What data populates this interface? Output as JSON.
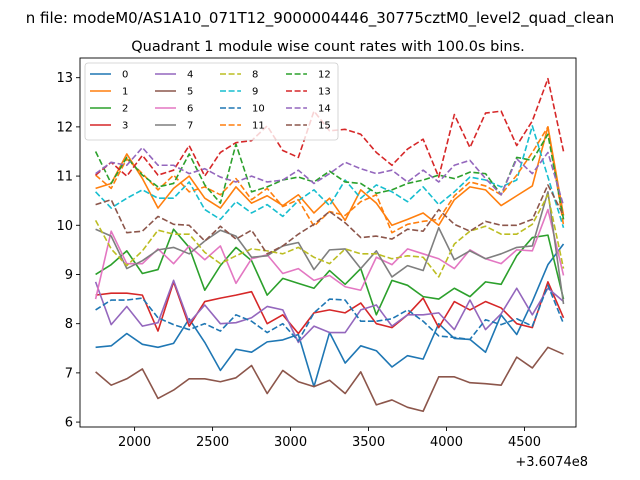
{
  "suptitle": "n file: modeM0/AS1A10_071T12_9000004446_30775cztM0_level2_quad_clean",
  "chart_data": {
    "type": "line",
    "title": "Quadrant 1 module wise count rates with 100.0s bins.",
    "xlabel": "",
    "ylabel": "",
    "x_offset_label": "+3.6074e8",
    "xlim": [
      1650,
      4830
    ],
    "ylim": [
      5.9,
      13.4
    ],
    "x_ticks": [
      2000,
      2500,
      3000,
      3500,
      4000,
      4500
    ],
    "x_tick_labels": [
      "2000",
      "2500",
      "3000",
      "3500",
      "4000",
      "4500"
    ],
    "y_ticks": [
      6,
      7,
      8,
      9,
      10,
      11,
      12,
      13
    ],
    "y_tick_labels": [
      "6",
      "7",
      "8",
      "9",
      "10",
      "11",
      "12",
      "13"
    ],
    "grid": false,
    "legend_position": "upper-left",
    "x": [
      1750,
      1850,
      1950,
      2050,
      2150,
      2250,
      2350,
      2450,
      2550,
      2650,
      2750,
      2850,
      2950,
      3050,
      3150,
      3250,
      3350,
      3450,
      3550,
      3650,
      3750,
      3850,
      3950,
      4050,
      4150,
      4250,
      4350,
      4450,
      4550,
      4650,
      4750
    ],
    "series": [
      {
        "name": "0",
        "color": "#1f77b4",
        "dash": "solid",
        "values": [
          7.52,
          7.55,
          7.8,
          7.58,
          7.52,
          7.6,
          8.1,
          7.62,
          7.05,
          7.48,
          7.42,
          7.63,
          7.67,
          7.78,
          6.72,
          7.82,
          7.2,
          7.55,
          7.45,
          7.12,
          7.35,
          7.28,
          8.0,
          7.7,
          7.68,
          7.42,
          8.18,
          7.78,
          8.45,
          9.2,
          9.62
        ]
      },
      {
        "name": "1",
        "color": "#ff7f0e",
        "dash": "solid",
        "values": [
          10.75,
          10.85,
          11.45,
          10.95,
          10.35,
          10.75,
          11.0,
          10.55,
          10.35,
          10.78,
          10.45,
          10.6,
          10.4,
          10.62,
          10.25,
          10.55,
          10.1,
          10.72,
          10.45,
          10.0,
          10.12,
          10.25,
          10.0,
          10.52,
          10.78,
          10.72,
          10.4,
          10.6,
          10.8,
          12.0,
          10.2
        ]
      },
      {
        "name": "2",
        "color": "#2ca02c",
        "dash": "solid",
        "values": [
          9.0,
          9.2,
          9.48,
          9.02,
          9.1,
          9.92,
          9.55,
          8.68,
          9.18,
          9.55,
          9.28,
          8.58,
          8.92,
          8.82,
          8.72,
          9.08,
          8.8,
          9.12,
          8.18,
          8.88,
          8.78,
          8.55,
          8.5,
          8.72,
          8.55,
          8.85,
          8.8,
          9.38,
          9.75,
          9.8,
          8.5
        ]
      },
      {
        "name": "3",
        "color": "#d62728",
        "dash": "solid",
        "values": [
          8.58,
          8.62,
          8.62,
          8.58,
          7.85,
          8.85,
          7.95,
          8.45,
          8.52,
          8.58,
          8.65,
          8.0,
          8.18,
          7.8,
          8.22,
          8.28,
          8.22,
          8.42,
          8.0,
          7.92,
          8.18,
          8.52,
          7.92,
          8.45,
          8.28,
          8.45,
          8.32,
          8.0,
          7.92,
          8.85,
          8.12
        ]
      },
      {
        "name": "4",
        "color": "#9467bd",
        "dash": "solid",
        "values": [
          8.85,
          7.98,
          8.35,
          7.95,
          8.02,
          8.88,
          8.02,
          8.38,
          8.0,
          8.02,
          8.12,
          8.35,
          8.28,
          7.62,
          7.95,
          7.82,
          7.82,
          8.28,
          8.38,
          7.95,
          8.18,
          8.18,
          8.22,
          7.88,
          8.48,
          7.88,
          8.2,
          8.72,
          8.18,
          8.72,
          8.45
        ]
      },
      {
        "name": "5",
        "color": "#8c564b",
        "dash": "solid",
        "values": [
          7.02,
          6.75,
          6.88,
          7.08,
          6.48,
          6.65,
          6.88,
          6.88,
          6.82,
          6.9,
          7.15,
          6.58,
          7.05,
          6.82,
          6.72,
          6.85,
          6.58,
          7.02,
          6.35,
          6.45,
          6.3,
          6.22,
          6.92,
          6.92,
          6.8,
          6.78,
          6.75,
          7.32,
          7.1,
          7.52,
          7.38
        ]
      },
      {
        "name": "6",
        "color": "#e377c2",
        "dash": "solid",
        "values": [
          8.5,
          9.88,
          9.22,
          9.22,
          9.52,
          9.22,
          9.58,
          9.3,
          9.58,
          8.82,
          9.32,
          9.4,
          9.02,
          9.12,
          8.88,
          8.98,
          8.75,
          8.68,
          9.35,
          9.2,
          9.52,
          9.42,
          9.32,
          9.12,
          9.5,
          9.32,
          9.22,
          9.5,
          9.48,
          10.32,
          8.98
        ]
      },
      {
        "name": "7",
        "color": "#7f7f7f",
        "dash": "solid",
        "values": [
          9.92,
          9.78,
          9.12,
          9.28,
          9.5,
          9.55,
          9.42,
          9.68,
          9.9,
          9.78,
          9.35,
          9.38,
          9.58,
          9.65,
          9.1,
          9.5,
          9.52,
          9.12,
          9.48,
          8.95,
          9.18,
          9.08,
          9.95,
          9.3,
          9.48,
          9.32,
          9.42,
          9.55,
          9.58,
          10.68,
          8.4
        ]
      },
      {
        "name": "8",
        "color": "#bcbd22",
        "dash": "dashed",
        "values": [
          10.1,
          9.52,
          9.18,
          9.48,
          9.9,
          9.82,
          9.82,
          9.45,
          9.22,
          9.38,
          9.52,
          9.48,
          9.42,
          9.55,
          9.35,
          9.22,
          9.52,
          9.42,
          9.42,
          9.32,
          9.38,
          9.35,
          8.95,
          9.62,
          9.88,
          9.98,
          9.82,
          9.82,
          10.02,
          10.62,
          9.12
        ]
      },
      {
        "name": "9",
        "color": "#17becf",
        "dash": "dashed",
        "values": [
          10.68,
          10.35,
          10.55,
          10.72,
          10.55,
          10.55,
          10.88,
          10.32,
          10.12,
          10.48,
          10.25,
          10.42,
          10.18,
          10.5,
          10.72,
          10.4,
          10.92,
          10.55,
          10.82,
          10.68,
          10.48,
          10.78,
          10.42,
          10.68,
          10.98,
          10.92,
          10.78,
          10.92,
          12.02,
          10.98,
          9.95
        ]
      },
      {
        "name": "10",
        "color": "#1f77b4",
        "dash": "dashed",
        "values": [
          8.28,
          8.48,
          8.48,
          8.52,
          8.12,
          7.98,
          7.88,
          8.0,
          7.85,
          8.18,
          8.05,
          7.82,
          8.0,
          7.65,
          8.22,
          8.5,
          8.48,
          8.05,
          8.05,
          8.1,
          8.28,
          8.05,
          7.75,
          7.72,
          7.68,
          8.08,
          7.98,
          8.1,
          7.95,
          8.78,
          8.0
        ]
      },
      {
        "name": "11",
        "color": "#ff7f0e",
        "dash": "dashed",
        "values": [
          11.02,
          10.75,
          11.35,
          11.05,
          10.72,
          11.02,
          10.68,
          10.78,
          10.62,
          10.95,
          10.52,
          10.75,
          10.38,
          10.52,
          9.98,
          10.28,
          10.2,
          10.48,
          10.62,
          9.85,
          10.02,
          10.08,
          10.12,
          10.6,
          10.88,
          10.8,
          10.62,
          11.02,
          11.48,
          12.0,
          10.0
        ]
      },
      {
        "name": "12",
        "color": "#2ca02c",
        "dash": "dashed",
        "values": [
          11.5,
          10.85,
          11.38,
          11.02,
          10.78,
          10.85,
          11.45,
          10.82,
          10.45,
          11.65,
          10.68,
          10.78,
          10.92,
          10.98,
          10.88,
          11.1,
          10.88,
          10.85,
          10.65,
          10.72,
          10.85,
          10.92,
          11.02,
          10.95,
          11.08,
          11.05,
          10.62,
          11.38,
          11.32,
          11.85,
          10.12
        ]
      },
      {
        "name": "13",
        "color": "#d62728",
        "dash": "dashed",
        "values": [
          11.02,
          11.28,
          11.0,
          11.42,
          11.02,
          11.12,
          11.62,
          11.0,
          11.48,
          11.68,
          11.72,
          12.02,
          11.52,
          11.38,
          12.32,
          11.92,
          11.95,
          11.85,
          11.48,
          11.22,
          11.55,
          11.75,
          10.98,
          12.25,
          11.58,
          12.28,
          12.32,
          11.62,
          12.12,
          12.98,
          11.5
        ]
      },
      {
        "name": "14",
        "color": "#9467bd",
        "dash": "dashed",
        "values": [
          11.05,
          11.28,
          11.22,
          11.58,
          11.22,
          11.22,
          11.05,
          11.15,
          10.98,
          10.88,
          11.0,
          10.88,
          10.92,
          11.12,
          10.85,
          11.05,
          11.28,
          11.15,
          11.05,
          11.12,
          10.88,
          11.12,
          10.88,
          11.22,
          11.32,
          10.95,
          10.62,
          11.35,
          11.05,
          11.48,
          10.4
        ]
      },
      {
        "name": "15",
        "color": "#8c564b",
        "dash": "dashed",
        "values": [
          10.42,
          10.52,
          9.85,
          9.88,
          10.18,
          10.02,
          10.0,
          9.68,
          9.98,
          9.72,
          9.9,
          9.42,
          9.58,
          9.82,
          10.02,
          10.28,
          10.05,
          9.75,
          9.78,
          9.72,
          9.92,
          9.88,
          10.32,
          10.02,
          9.88,
          10.08,
          10.0,
          10.0,
          10.12,
          10.82,
          10.2
        ]
      }
    ]
  }
}
